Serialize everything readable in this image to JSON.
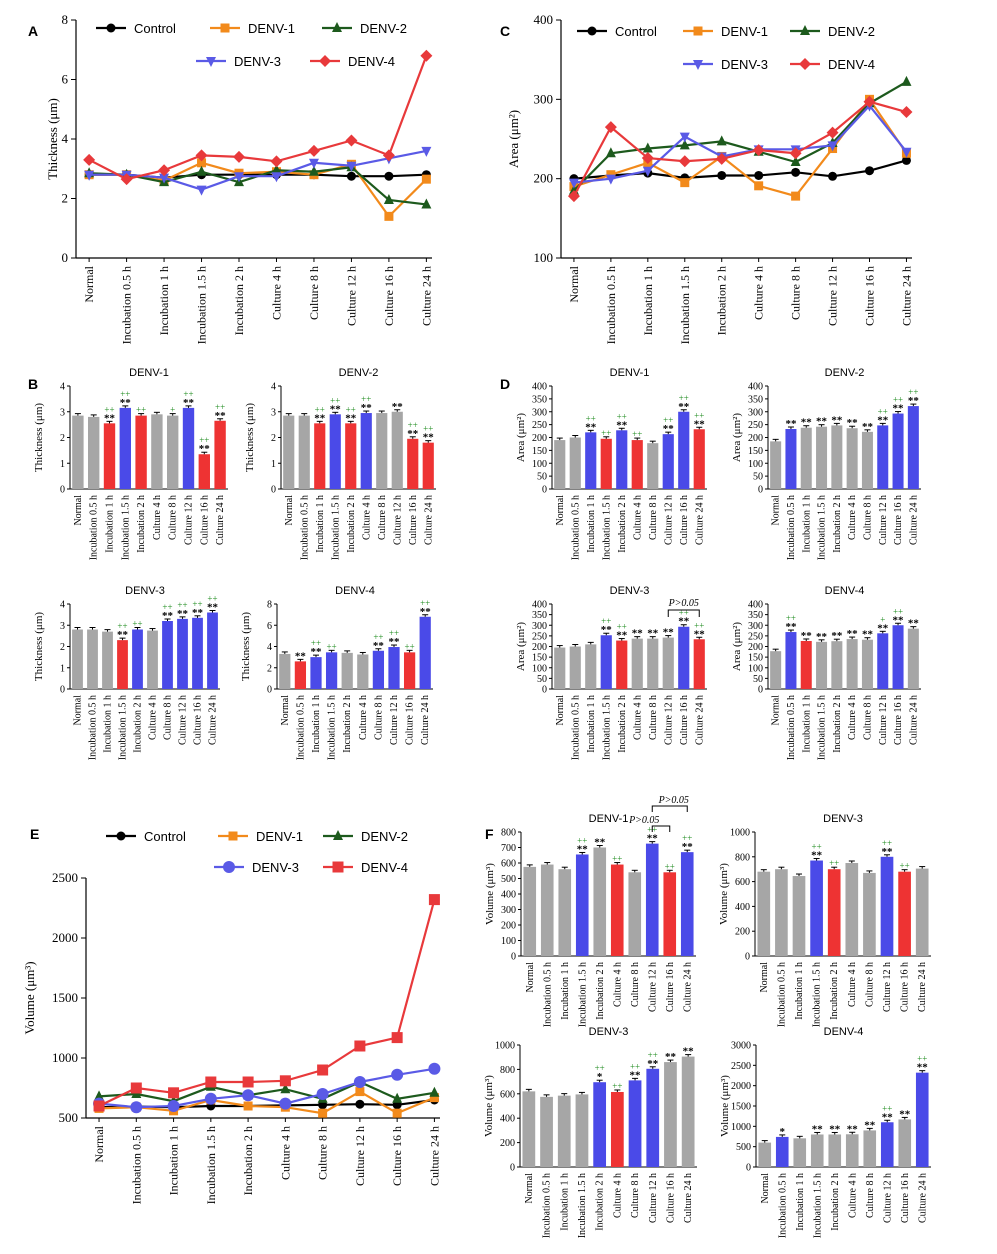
{
  "categories": [
    "Normal",
    "Incubation 0.5 h",
    "Incubation 1 h",
    "Incubation 1.5 h",
    "Incubation 2 h",
    "Culture 4 h",
    "Culture 8 h",
    "Culture 12 h",
    "Culture 16 h",
    "Culture 24 h"
  ],
  "colors": {
    "control": "#000000",
    "denv1": "#f28a1b",
    "denv2": "#1d5a1d",
    "denv3": "#5a5ae6",
    "denv4": "#e8393b",
    "bar_gray": "#a6a6a6",
    "bar_red": "#ee3333",
    "bar_blue": "#4a4ae8"
  },
  "chart_data": [
    {
      "id": "A",
      "type": "line",
      "ylabel": "Thickness (μm)",
      "ylim": [
        0,
        8
      ],
      "yticks": [
        0,
        2,
        4,
        6,
        8
      ],
      "legend": [
        "Control",
        "DENV-1",
        "DENV-2",
        "DENV-3",
        "DENV-4"
      ],
      "series": [
        {
          "name": "Control",
          "values": [
            2.8,
            2.8,
            2.7,
            2.8,
            2.8,
            2.8,
            2.8,
            2.75,
            2.75,
            2.8
          ]
        },
        {
          "name": "DENV-1",
          "values": [
            2.8,
            2.8,
            2.6,
            3.2,
            2.85,
            2.9,
            2.8,
            3.15,
            1.4,
            2.65
          ]
        },
        {
          "name": "DENV-2",
          "values": [
            2.85,
            2.8,
            2.55,
            2.9,
            2.55,
            2.95,
            2.9,
            3.05,
            1.95,
            1.8
          ]
        },
        {
          "name": "DENV-3",
          "values": [
            2.8,
            2.8,
            2.7,
            2.3,
            2.75,
            2.75,
            3.2,
            3.1,
            3.35,
            3.6
          ]
        },
        {
          "name": "DENV-4",
          "values": [
            3.3,
            2.65,
            2.95,
            3.45,
            3.4,
            3.25,
            3.6,
            3.95,
            3.45,
            6.8
          ]
        }
      ]
    },
    {
      "id": "C",
      "type": "line",
      "ylabel": "Area (μm²)",
      "ylim": [
        100,
        400
      ],
      "yticks": [
        100,
        200,
        300,
        400
      ],
      "legend": [
        "Control",
        "DENV-1",
        "DENV-2",
        "DENV-3",
        "DENV-4"
      ],
      "series": [
        {
          "name": "Control",
          "values": [
            200,
            204,
            207,
            201,
            204,
            204,
            208,
            203,
            210,
            223
          ]
        },
        {
          "name": "DENV-1",
          "values": [
            190,
            205,
            220,
            195,
            228,
            191,
            178,
            238,
            300,
            232
          ]
        },
        {
          "name": "DENV-2",
          "values": [
            185,
            232,
            238,
            242,
            247,
            234,
            221,
            245,
            295,
            322
          ]
        },
        {
          "name": "DENV-3",
          "values": [
            195,
            200,
            210,
            253,
            228,
            237,
            237,
            242,
            292,
            234
          ]
        },
        {
          "name": "DENV-4",
          "values": [
            178,
            265,
            226,
            222,
            225,
            236,
            232,
            258,
            297,
            284
          ]
        }
      ]
    },
    {
      "id": "E",
      "type": "line",
      "ylabel": "Volume (μm³)",
      "ylim": [
        500,
        2500
      ],
      "yticks": [
        500,
        1000,
        1500,
        2000,
        2500
      ],
      "legend": [
        "Control",
        "DENV-1",
        "DENV-2",
        "DENV-3",
        "DENV-4"
      ],
      "series": [
        {
          "name": "Control",
          "values": [
            590,
            595,
            590,
            600,
            600,
            605,
            610,
            615,
            610,
            650
          ]
        },
        {
          "name": "DENV-1",
          "values": [
            580,
            590,
            560,
            650,
            600,
            590,
            540,
            720,
            540,
            670
          ]
        },
        {
          "name": "DENV-2",
          "values": [
            680,
            700,
            640,
            760,
            690,
            740,
            660,
            800,
            660,
            710
          ]
        },
        {
          "name": "DENV-3",
          "values": [
            620,
            590,
            600,
            660,
            690,
            620,
            700,
            800,
            860,
            910
          ]
        },
        {
          "name": "DENV-4",
          "values": [
            600,
            750,
            710,
            800,
            800,
            810,
            900,
            1100,
            1170,
            2320
          ]
        }
      ]
    },
    {
      "id": "B1",
      "type": "bar",
      "title": "DENV-1",
      "ylabel": "Thickness (μm)",
      "ylim": [
        0,
        4
      ],
      "yticks": [
        0,
        1,
        2,
        3,
        4
      ],
      "values": [
        2.85,
        2.8,
        2.55,
        3.15,
        2.85,
        2.9,
        2.85,
        3.15,
        1.35,
        2.65
      ],
      "colors": [
        "g",
        "g",
        "r",
        "b",
        "r",
        "g",
        "g",
        "b",
        "r",
        "r"
      ],
      "stars": [
        "",
        "",
        "**",
        "**",
        "",
        "",
        "",
        "**",
        "**",
        "**"
      ],
      "plus": [
        "",
        "",
        "++",
        "++",
        "++",
        "",
        "+",
        "++",
        "++",
        "++"
      ]
    },
    {
      "id": "B2",
      "type": "bar",
      "title": "DENV-2",
      "ylabel": "Thickness (μm)",
      "ylim": [
        0,
        4
      ],
      "yticks": [
        0,
        1,
        2,
        3,
        4
      ],
      "values": [
        2.85,
        2.85,
        2.55,
        2.9,
        2.55,
        2.95,
        2.95,
        3.0,
        1.95,
        1.8
      ],
      "colors": [
        "g",
        "g",
        "r",
        "b",
        "r",
        "b",
        "g",
        "g",
        "r",
        "r"
      ],
      "stars": [
        "",
        "",
        "**",
        "**",
        "**",
        "**",
        "",
        "**",
        "**",
        "**"
      ],
      "plus": [
        "",
        "",
        "++",
        "++",
        "++",
        "++",
        "",
        "",
        "++",
        "++"
      ]
    },
    {
      "id": "B3",
      "type": "bar",
      "title": "DENV-3",
      "ylabel": "Thickness (μm)",
      "ylim": [
        0,
        4
      ],
      "yticks": [
        0,
        1,
        2,
        3,
        4
      ],
      "values": [
        2.8,
        2.8,
        2.7,
        2.3,
        2.8,
        2.75,
        3.2,
        3.3,
        3.35,
        3.6
      ],
      "colors": [
        "g",
        "g",
        "g",
        "r",
        "b",
        "g",
        "b",
        "b",
        "b",
        "b"
      ],
      "stars": [
        "",
        "",
        "",
        "**",
        "",
        "",
        "**",
        "**",
        "**",
        "**"
      ],
      "plus": [
        "",
        "",
        "",
        "++",
        "++",
        "",
        "++",
        "++",
        "++",
        "++"
      ]
    },
    {
      "id": "B4",
      "type": "bar",
      "title": "DENV-4",
      "ylabel": "Thickness (μm)",
      "ylim": [
        0,
        8
      ],
      "yticks": [
        0,
        2,
        4,
        6,
        8
      ],
      "values": [
        3.3,
        2.6,
        3.0,
        3.45,
        3.4,
        3.25,
        3.6,
        3.95,
        3.45,
        6.8
      ],
      "colors": [
        "g",
        "r",
        "b",
        "b",
        "g",
        "g",
        "b",
        "b",
        "r",
        "b"
      ],
      "stars": [
        "",
        "**",
        "**",
        "",
        "",
        "",
        "**",
        "**",
        "",
        "**"
      ],
      "plus": [
        "",
        "",
        "++",
        "++",
        "",
        "",
        "++",
        "++",
        "++",
        "++"
      ]
    },
    {
      "id": "D1",
      "type": "bar",
      "title": "DENV-1",
      "ylabel": "Area (μm²)",
      "ylim": [
        0,
        400
      ],
      "yticks": [
        0,
        50,
        100,
        150,
        200,
        250,
        300,
        350,
        400
      ],
      "values": [
        190,
        200,
        220,
        195,
        228,
        190,
        178,
        213,
        300,
        232
      ],
      "colors": [
        "g",
        "g",
        "b",
        "r",
        "b",
        "r",
        "g",
        "b",
        "b",
        "r"
      ],
      "stars": [
        "",
        "",
        "**",
        "",
        "**",
        "",
        "",
        "**",
        "**",
        "**"
      ],
      "plus": [
        "",
        "",
        "++",
        "++",
        "++",
        "++",
        "",
        "++",
        "++",
        "++"
      ]
    },
    {
      "id": "D2",
      "type": "bar",
      "title": "DENV-2",
      "ylabel": "Area (μm²)",
      "ylim": [
        0,
        400
      ],
      "yticks": [
        0,
        50,
        100,
        150,
        200,
        250,
        300,
        350,
        400
      ],
      "values": [
        185,
        233,
        238,
        242,
        247,
        236,
        222,
        247,
        293,
        322
      ],
      "colors": [
        "g",
        "b",
        "g",
        "g",
        "g",
        "g",
        "g",
        "b",
        "b",
        "b"
      ],
      "stars": [
        "",
        "**",
        "**",
        "**",
        "**",
        "**",
        "**",
        "**",
        "**",
        "**"
      ],
      "plus": [
        "",
        "",
        "",
        "",
        "",
        "",
        "",
        "++",
        "++",
        "++"
      ]
    },
    {
      "id": "D3",
      "type": "bar",
      "title": "DENV-3",
      "ylabel": "Area (μm²)",
      "ylim": [
        0,
        400
      ],
      "yticks": [
        0,
        50,
        100,
        150,
        200,
        250,
        300,
        350,
        400
      ],
      "values": [
        195,
        200,
        210,
        253,
        228,
        237,
        237,
        242,
        293,
        234
      ],
      "colors": [
        "g",
        "g",
        "g",
        "b",
        "r",
        "g",
        "g",
        "g",
        "b",
        "r"
      ],
      "stars": [
        "",
        "",
        "",
        "**",
        "**",
        "**",
        "**",
        "**",
        "**",
        "**"
      ],
      "plus": [
        "",
        "",
        "",
        "++",
        "++",
        "",
        "",
        "",
        "++",
        "++"
      ],
      "annotation": "P>0.05"
    },
    {
      "id": "D4",
      "type": "bar",
      "title": "DENV-4",
      "ylabel": "Area (μm²)",
      "ylim": [
        0,
        400
      ],
      "yticks": [
        0,
        50,
        100,
        150,
        200,
        250,
        300,
        350,
        400
      ],
      "values": [
        178,
        268,
        226,
        222,
        225,
        235,
        232,
        262,
        300,
        284
      ],
      "colors": [
        "g",
        "b",
        "r",
        "g",
        "g",
        "g",
        "g",
        "b",
        "b",
        "g"
      ],
      "stars": [
        "",
        "**",
        "**",
        "**",
        "**",
        "**",
        "**",
        "**",
        "**",
        "**"
      ],
      "plus": [
        "",
        "++",
        "",
        "",
        "",
        "",
        "",
        "+",
        "++",
        ""
      ]
    },
    {
      "id": "F1",
      "type": "bar",
      "title": "DENV-1",
      "ylabel": "Volume (μm³)",
      "ylim": [
        0,
        800
      ],
      "yticks": [
        0,
        100,
        200,
        300,
        400,
        500,
        600,
        700,
        800
      ],
      "values": [
        575,
        590,
        560,
        655,
        700,
        590,
        540,
        725,
        540,
        670
      ],
      "colors": [
        "g",
        "g",
        "g",
        "b",
        "g",
        "r",
        "g",
        "b",
        "r",
        "b"
      ],
      "stars": [
        "",
        "",
        "",
        "**",
        "**",
        "",
        "",
        "**",
        "",
        "**"
      ],
      "plus": [
        "",
        "",
        "",
        "++",
        "",
        "++",
        "",
        "++",
        "++",
        "++"
      ],
      "annotations": [
        "P>0.05",
        "P>0.05"
      ]
    },
    {
      "id": "F2",
      "type": "bar",
      "title": "DENV-3",
      "ylabel": "Volume (μm³)",
      "ylim": [
        0,
        1000
      ],
      "yticks": [
        0,
        200,
        400,
        600,
        800,
        1000
      ],
      "values": [
        680,
        700,
        645,
        770,
        700,
        750,
        670,
        800,
        680,
        705
      ],
      "colors": [
        "g",
        "g",
        "g",
        "b",
        "r",
        "g",
        "g",
        "b",
        "r",
        "g"
      ],
      "stars": [
        "",
        "",
        "",
        "**",
        "",
        "",
        "",
        "**",
        "",
        ""
      ],
      "plus": [
        "",
        "",
        "",
        "++",
        "++",
        "",
        "",
        "++",
        "++",
        ""
      ]
    },
    {
      "id": "F3",
      "type": "bar",
      "title": "DENV-3",
      "ylabel": "Volume (μm³)",
      "ylim": [
        0,
        1000
      ],
      "yticks": [
        0,
        200,
        400,
        600,
        800,
        1000
      ],
      "values": [
        620,
        575,
        585,
        595,
        695,
        615,
        710,
        805,
        860,
        905
      ],
      "colors": [
        "g",
        "g",
        "g",
        "g",
        "b",
        "r",
        "b",
        "b",
        "g",
        "g"
      ],
      "stars": [
        "",
        "",
        "",
        "",
        "*",
        "",
        "**",
        "**",
        "**",
        "**"
      ],
      "plus": [
        "",
        "",
        "",
        "",
        "++",
        "++",
        "++",
        "++",
        "",
        ""
      ]
    },
    {
      "id": "F4",
      "type": "bar",
      "title": "DENV-4",
      "ylabel": "Volume (μm³)",
      "ylim": [
        0,
        3000
      ],
      "yticks": [
        0,
        500,
        1000,
        1500,
        2000,
        2500,
        3000
      ],
      "values": [
        600,
        740,
        705,
        800,
        800,
        805,
        900,
        1100,
        1170,
        2320
      ],
      "colors": [
        "g",
        "b",
        "g",
        "g",
        "g",
        "g",
        "g",
        "b",
        "g",
        "b"
      ],
      "stars": [
        "",
        "*",
        "",
        "**",
        "**",
        "**",
        "**",
        "**",
        "**",
        "**"
      ],
      "plus": [
        "",
        "",
        "",
        "",
        "",
        "",
        "",
        "++",
        "",
        "++"
      ]
    }
  ],
  "panel_letters": [
    "A",
    "B",
    "C",
    "D",
    "E",
    "F"
  ]
}
